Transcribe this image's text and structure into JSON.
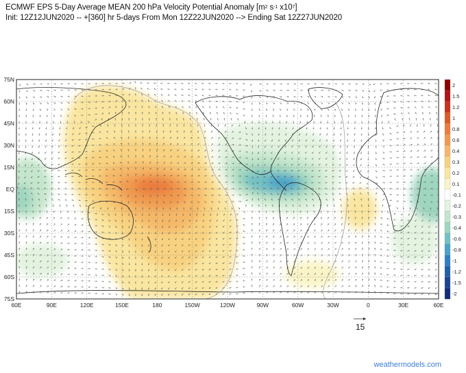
{
  "header": {
    "line1_prefix": "ECMWF EPS 5-Day Average MEAN 200 hPa Velocity Potential Anomaly [m",
    "unit_sup1": "2",
    "unit_mid": " s",
    "unit_sup2": "-1",
    "unit_mid2": " x10",
    "unit_sup3": "7",
    "line1_suffix": "]",
    "line2": "Init: 12Z12JUN2020 -- +[360] hr   5-days From Mon 12Z22JUN2020 --> Ending Sat 12Z27JUN2020"
  },
  "map": {
    "lat_labels": [
      "75N",
      "60N",
      "45N",
      "30N",
      "15N",
      "EQ",
      "15S",
      "30S",
      "45S",
      "60S",
      "75S"
    ],
    "lon_labels": [
      "60E",
      "90E",
      "120E",
      "150E",
      "180",
      "150W",
      "120W",
      "90W",
      "60W",
      "30W",
      "0",
      "30E",
      "60E"
    ]
  },
  "colorbar": {
    "labels": [
      "2",
      "1.5",
      "1.2",
      "1",
      "0.8",
      "0.6",
      "0.4",
      "0.3",
      "0.2",
      "0.1",
      "-0.1",
      "-0.2",
      "-0.3",
      "-0.4",
      "-0.6",
      "-0.8",
      "-1",
      "-1.2",
      "-1.5",
      "-2"
    ],
    "colors": [
      "#8b0000",
      "#b01515",
      "#c8321e",
      "#dc5a28",
      "#eb7d3c",
      "#f09a50",
      "#f5b868",
      "#f8d280",
      "#fae6a0",
      "#fbf4c8",
      "#ffffff",
      "#e3f3e0",
      "#c4e6cc",
      "#9fd6c0",
      "#72c0c4",
      "#4aa3c8",
      "#2f80c0",
      "#2460a8",
      "#1c4590",
      "#122e78"
    ]
  },
  "vector_key": {
    "label": "15"
  },
  "watermark": "weathermodels.com"
}
